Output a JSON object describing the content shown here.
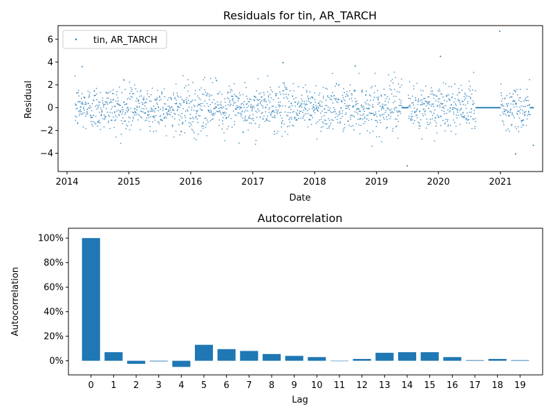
{
  "chart_data": [
    {
      "type": "scatter",
      "title": "Residuals for tin, AR_TARCH",
      "xlabel": "Date",
      "ylabel": "Residual",
      "xlim": [
        "2013-11-09",
        "2021-09-07"
      ],
      "ylim": [
        -5.6,
        7.2
      ],
      "x_ticks": [
        "2014",
        "2015",
        "2016",
        "2017",
        "2018",
        "2019",
        "2020",
        "2021"
      ],
      "y_ticks": [
        -4,
        -2,
        0,
        2,
        4,
        6
      ],
      "legend": {
        "entries": [
          "tin, AR_TARCH"
        ],
        "placement": "upper-left"
      },
      "color": "#1f77b4",
      "series": [
        {
          "name": "tin, AR_TARCH",
          "x_range": [
            "2014-02-17",
            "2021-07-14"
          ],
          "flat_zero_intervals": [
            [
              "2019-05-31",
              "2019-07-05"
            ],
            [
              "2020-08-10",
              "2020-12-31"
            ],
            [
              "2021-06-25",
              "2021-07-14"
            ]
          ],
          "notable_points": [
            {
              "x": "2020-12-28",
              "y": 6.7
            },
            {
              "x": "2020-01-13",
              "y": 4.5
            },
            {
              "x": "2017-06-28",
              "y": 3.95
            },
            {
              "x": "2014-03-31",
              "y": 3.6
            },
            {
              "x": "2018-08-28",
              "y": 3.65
            },
            {
              "x": "2019-07-01",
              "y": -5.1
            },
            {
              "x": "2021-03-31",
              "y": -4.05
            },
            {
              "x": "2021-07-14",
              "y": -3.3
            }
          ],
          "typical_spread": [
            -3.4,
            3.4
          ]
        }
      ],
      "grid": false
    },
    {
      "type": "bar",
      "title": "Autocorrelation",
      "xlabel": "Lag",
      "ylabel": "Autocorrelation",
      "categories": [
        "0",
        "1",
        "2",
        "3",
        "4",
        "5",
        "6",
        "7",
        "8",
        "9",
        "10",
        "11",
        "12",
        "13",
        "14",
        "15",
        "16",
        "17",
        "18",
        "19"
      ],
      "values": [
        1.0,
        0.07,
        -0.025,
        -0.005,
        -0.05,
        0.13,
        0.095,
        0.08,
        0.055,
        0.04,
        0.03,
        0.0,
        0.015,
        0.065,
        0.07,
        0.07,
        0.03,
        0.005,
        0.015,
        0.005
      ],
      "ylim": [
        -0.115,
        1.08
      ],
      "y_ticks": [
        "0%",
        "20%",
        "40%",
        "60%",
        "80%",
        "100%"
      ],
      "y_tick_values": [
        0,
        0.2,
        0.4,
        0.6,
        0.8,
        1.0
      ],
      "color": "#1f77b4",
      "grid": false
    }
  ]
}
